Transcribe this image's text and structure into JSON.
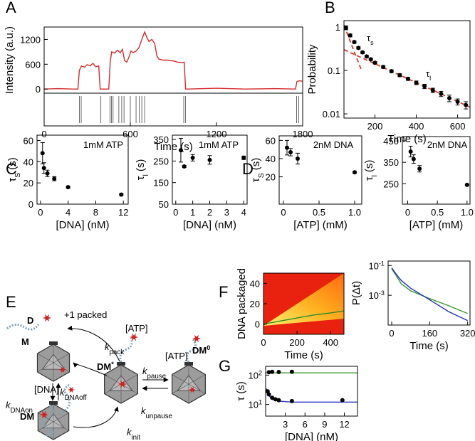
{
  "panel_labels": [
    "A",
    "B",
    "C",
    "D",
    "E",
    "F",
    "G"
  ],
  "chart_data": [
    {
      "type": "line",
      "ylabel": "Intensity (a.u.)",
      "xlim": [
        0,
        1800
      ],
      "ylim": [
        -100,
        1500
      ],
      "yticks": [
        0,
        600,
        1200
      ],
      "series": [
        {
          "kind": "line",
          "color": "#d42a2a",
          "x": [
            0,
            100,
            200,
            235,
            245,
            260,
            280,
            300,
            320,
            340,
            360,
            380,
            390,
            400,
            450,
            460,
            470,
            490,
            510,
            530,
            545,
            560,
            575,
            590,
            605,
            620,
            640,
            660,
            680,
            700,
            715,
            730,
            750,
            770,
            785,
            800,
            830,
            860,
            900,
            930,
            960,
            975,
            985,
            1000,
            1200,
            1400,
            1600,
            1750,
            1760,
            1775,
            1800
          ],
          "values": [
            0,
            10,
            0,
            0,
            450,
            560,
            530,
            590,
            560,
            620,
            540,
            560,
            0,
            0,
            0,
            650,
            900,
            870,
            940,
            880,
            960,
            690,
            650,
            770,
            920,
            880,
            920,
            1000,
            1200,
            1380,
            1250,
            1150,
            1200,
            1100,
            800,
            720,
            700,
            700,
            680,
            650,
            640,
            650,
            0,
            0,
            20,
            0,
            10,
            0,
            180,
            200,
            190
          ]
        }
      ]
    },
    {
      "type": "events",
      "xlabel": "Time (s)",
      "xlim": [
        0,
        1800
      ],
      "xticks": [
        0,
        600,
        1200,
        1800
      ],
      "series": [
        {
          "kind": "events",
          "color": "#444444",
          "x": [
            245,
            258,
            395,
            458,
            468,
            480,
            520,
            540,
            556,
            600,
            640,
            662,
            680,
            700,
            972,
            985,
            1758,
            1772
          ]
        }
      ]
    },
    {
      "type": "scatter",
      "ylabel": "Probability",
      "xlabel": "Time (s)",
      "log_y": true,
      "xlim": [
        50,
        660
      ],
      "ylim": [
        0.008,
        1.4
      ],
      "xticks": [
        200,
        400,
        600
      ],
      "yticks": [
        0.01,
        0.1,
        1
      ],
      "annotations": [
        {
          "main": "τ",
          "sub": "s"
        },
        {
          "main": "τ",
          "sub": "l"
        }
      ],
      "series": [
        {
          "kind": "line",
          "dashed": true,
          "color": "#e03a2a",
          "x": [
            50,
            135
          ],
          "values": [
            1.1,
            0.1
          ]
        },
        {
          "kind": "line",
          "dashed": true,
          "color": "#e03a2a",
          "x": [
            50,
            660
          ],
          "values": [
            0.3,
            0.0143
          ]
        },
        {
          "kind": "points",
          "color": "#000000",
          "x": [
            60,
            80,
            100,
            120,
            140,
            160,
            180,
            200,
            240,
            280,
            320,
            360,
            400,
            440,
            480,
            520,
            560,
            600,
            640
          ],
          "values": [
            0.96,
            0.64,
            0.45,
            0.33,
            0.26,
            0.21,
            0.18,
            0.15,
            0.12,
            0.096,
            0.078,
            0.064,
            0.052,
            0.043,
            0.035,
            0.029,
            0.023,
            0.019,
            0.016
          ],
          "errors": [
            0.1,
            0.05,
            0.03,
            0.02,
            0.015,
            0.012,
            0.01,
            0.009,
            0.008,
            0.007,
            0.006,
            0.005,
            0.005,
            0.005,
            0.004,
            0.004,
            0.004,
            0.003,
            0.003
          ]
        }
      ]
    },
    {
      "type": "scatter",
      "ylabel": {
        "main": "τ",
        "sub": "S",
        "rest": "(s)"
      },
      "xlabel": "[DNA] (nM)",
      "xlim": [
        -0.5,
        12.7
      ],
      "ylim": [
        0,
        65
      ],
      "xticks": [
        0,
        4,
        8,
        12
      ],
      "yticks": [
        0,
        20,
        40,
        60
      ],
      "annotations": [
        "1mM ATP"
      ],
      "series": [
        {
          "kind": "points",
          "color": "#000000",
          "x": [
            0.3,
            0.5,
            1,
            2,
            4,
            11.7
          ],
          "values": [
            48,
            34,
            29,
            24,
            16,
            9
          ],
          "errors": [
            10,
            5,
            3,
            2,
            1,
            1
          ]
        }
      ]
    },
    {
      "type": "scatter",
      "ylabel": {
        "main": "τ",
        "sub": "l",
        "rest": "(s)"
      },
      "xlabel": "[DNA] (nM)",
      "xlim": [
        -0.2,
        4.2
      ],
      "ylim": [
        50,
        370
      ],
      "xticks": [
        0,
        1,
        2,
        3,
        4
      ],
      "yticks": [
        50,
        150,
        250,
        350
      ],
      "annotations": [
        "1mM ATP"
      ],
      "series": [
        {
          "kind": "points",
          "color": "#000000",
          "x": [
            0.3,
            0.5,
            1,
            2,
            4
          ],
          "values": [
            300,
            225,
            265,
            255,
            265
          ],
          "errors": [
            55,
            5,
            15,
            20,
            8
          ]
        }
      ]
    },
    {
      "type": "scatter",
      "ylabel": {
        "main": "τ",
        "sub": "S",
        "rest": "(s)"
      },
      "xlabel": "[ATP] (mM)",
      "xlim": [
        -0.06,
        1.1
      ],
      "ylim": [
        -10,
        65
      ],
      "xticks": [
        0,
        0.5,
        {
          "value": 1,
          "label": "1.0"
        }
      ],
      "yticks": [
        20,
        40,
        60
      ],
      "annotations": [
        "2nM DNA"
      ],
      "series": [
        {
          "kind": "points",
          "color": "#000000",
          "x": [
            0.05,
            0.1,
            0.2,
            1
          ],
          "values": [
            52,
            47,
            40,
            25
          ],
          "errors": [
            8,
            4,
            6,
            1
          ]
        }
      ]
    },
    {
      "type": "scatter",
      "ylabel": {
        "main": "τ",
        "sub": "l",
        "rest": "(s)"
      },
      "xlabel": "[ATP] (mM)",
      "xlim": [
        -0.09,
        1.05
      ],
      "ylim": [
        155,
        470
      ],
      "xticks": [
        0,
        0.5,
        {
          "value": 1,
          "label": "1.0"
        }
      ],
      "yticks": [
        250,
        350,
        450
      ],
      "annotations": [
        "2nM DNA"
      ],
      "series": [
        {
          "kind": "points",
          "color": "#000000",
          "x": [
            0.05,
            0.1,
            0.2,
            1
          ],
          "values": [
            400,
            365,
            320,
            245
          ],
          "errors": [
            25,
            20,
            15,
            3
          ]
        }
      ]
    },
    {
      "type": "heatmap",
      "ylabel": "DNA packaged",
      "xlabel": "Time (s)",
      "xlim": [
        0,
        480
      ],
      "ylim": [
        -10,
        50
      ],
      "xticks": [
        0,
        200,
        400
      ],
      "yticks": [
        0,
        20,
        40
      ],
      "series": [
        {
          "kind": "line",
          "color": "#2f8a2a",
          "x": [
            0,
            100,
            200,
            300,
            400,
            480
          ],
          "values": [
            0,
            3,
            6,
            9,
            11,
            13
          ]
        }
      ]
    },
    {
      "type": "line",
      "ylabel": {
        "main": "P(Δt)"
      },
      "xlabel": "Time (s)",
      "log_y": true,
      "xlim": [
        -15,
        330
      ],
      "ylim": [
        1e-05,
        0.2
      ],
      "xticks": [
        0,
        160,
        320
      ],
      "yticks": [
        {
          "value": 0.1,
          "label": "10",
          "exponent": "-1"
        },
        {
          "value": 0.001,
          "label": "10",
          "exponent": "-3"
        }
      ],
      "series": [
        {
          "kind": "line",
          "color": "#3a9a30",
          "x": [
            0,
            20,
            40,
            80,
            160,
            240,
            320
          ],
          "values": [
            0.06,
            0.02,
            0.006,
            0.002,
            0.0006,
            0.0002,
            6e-05
          ]
        },
        {
          "kind": "line",
          "color": "#2030c0",
          "x": [
            0,
            20,
            40,
            80,
            160,
            240,
            320
          ],
          "values": [
            0.07,
            0.025,
            0.01,
            0.003,
            0.0005,
            8e-05,
            2e-05
          ]
        }
      ]
    },
    {
      "type": "scatter",
      "ylabel": {
        "main": "τ",
        "rest": "(s)"
      },
      "xlabel": "[DNA] (nM)",
      "log_y": true,
      "xlim": [
        0,
        14
      ],
      "ylim": [
        4,
        200
      ],
      "xticks": [
        3,
        6,
        9,
        12
      ],
      "yticks": [
        {
          "value": 10,
          "label": "10",
          "exponent": "1"
        },
        {
          "value": 100,
          "label": "10",
          "exponent": "2"
        }
      ],
      "series": [
        {
          "kind": "line",
          "color": "#3a9a30",
          "x": [
            0,
            14
          ],
          "values": [
            120,
            120
          ]
        },
        {
          "kind": "line",
          "color": "#2a3ac8",
          "x": [
            0.1,
            0.5,
            1,
            2,
            4,
            8,
            14
          ],
          "values": [
            35,
            20,
            15,
            13,
            12,
            12,
            12
          ]
        },
        {
          "kind": "points",
          "color": "#000000",
          "x": [
            0.5,
            1,
            2,
            4
          ],
          "values": [
            125,
            130,
            128,
            130
          ]
        },
        {
          "kind": "points",
          "color": "#000000",
          "x": [
            0.3,
            0.5,
            1,
            1.5,
            2,
            4,
            11.7
          ],
          "values": [
            28,
            22,
            17,
            15,
            14,
            13,
            14
          ]
        }
      ]
    }
  ],
  "diagram": {
    "nodes": [
      {
        "label": "M"
      },
      {
        "label": "DM",
        "sup": "*"
      },
      {
        "label": "DM",
        "sup": "0"
      },
      {
        "label": "DM"
      }
    ],
    "dna": "D",
    "output": "+1 packed",
    "rates": [
      {
        "k": "k",
        "sub": "pack",
        "sup": "[ATP]"
      },
      {
        "k": "k",
        "sub": "DNAon",
        "sup": "[DNA]"
      },
      {
        "k": "k",
        "sub": "DNAoff"
      },
      {
        "k": "k",
        "sub": "pause",
        "sup": "[ATP]"
      },
      {
        "k": "k",
        "sub": "unpause"
      },
      {
        "k": "k",
        "sub": "init"
      }
    ]
  }
}
